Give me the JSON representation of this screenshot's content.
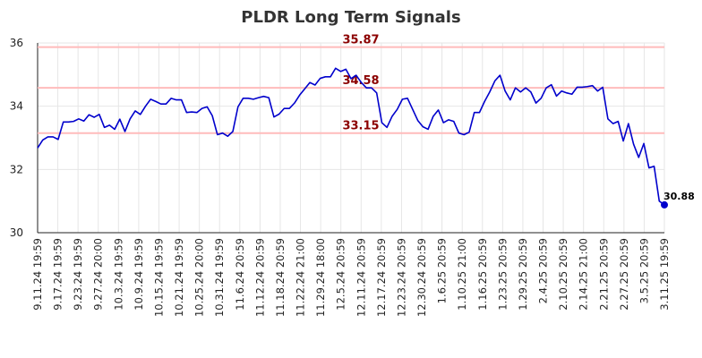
{
  "chart_data": {
    "type": "line",
    "title": "PLDR Long Term Signals",
    "xlabel": "",
    "ylabel": "",
    "ylim": [
      30,
      36
    ],
    "y_ticks": [
      30,
      32,
      34,
      36
    ],
    "x_tick_labels": [
      "9.11.24 19:59",
      "9.17.24 19:59",
      "9.23.24 19:59",
      "9.27.24 20:00",
      "10.3.24 19:59",
      "10.9.24 19:59",
      "10.15.24 19:59",
      "10.21.24 19:59",
      "10.25.24 20:00",
      "10.31.24 19:59",
      "11.6.24 20:59",
      "11.12.24 20:59",
      "11.18.24 20:59",
      "11.22.24 21:00",
      "11.29.24 18:00",
      "12.5.24 20:59",
      "12.11.24 20:59",
      "12.17.24 20:59",
      "12.23.24 20:59",
      "12.30.24 20:59",
      "1.6.25 20:59",
      "1.10.25 21:00",
      "1.16.25 20:59",
      "1.23.25 20:59",
      "1.29.25 20:59",
      "2.4.25 20:59",
      "2.10.25 20:59",
      "2.14.25 21:00",
      "2.21.25 20:59",
      "2.27.25 20:59",
      "3.5.25 20:59",
      "3.11.25 19:59"
    ],
    "values": [
      32.68,
      32.93,
      33.03,
      33.03,
      32.95,
      33.5,
      33.5,
      33.52,
      33.6,
      33.53,
      33.73,
      33.65,
      33.74,
      33.33,
      33.4,
      33.27,
      33.59,
      33.2,
      33.6,
      33.85,
      33.74,
      34.0,
      34.22,
      34.15,
      34.07,
      34.07,
      34.25,
      34.2,
      34.2,
      33.8,
      33.82,
      33.8,
      33.93,
      33.98,
      33.7,
      33.1,
      33.15,
      33.05,
      33.2,
      33.98,
      34.25,
      34.25,
      34.22,
      34.27,
      34.31,
      34.27,
      33.66,
      33.75,
      33.93,
      33.93,
      34.1,
      34.35,
      34.55,
      34.75,
      34.67,
      34.88,
      34.93,
      34.93,
      35.2,
      35.1,
      35.17,
      34.87,
      34.98,
      34.75,
      34.58,
      34.58,
      34.42,
      33.48,
      33.33,
      33.68,
      33.9,
      34.22,
      34.25,
      33.9,
      33.55,
      33.35,
      33.27,
      33.68,
      33.88,
      33.48,
      33.57,
      33.52,
      33.15,
      33.1,
      33.18,
      33.8,
      33.8,
      34.15,
      34.45,
      34.8,
      34.98,
      34.48,
      34.2,
      34.58,
      34.45,
      34.58,
      34.45,
      34.1,
      34.25,
      34.58,
      34.68,
      34.32,
      34.48,
      34.42,
      34.38,
      34.6,
      34.6,
      34.62,
      34.65,
      34.48,
      34.6,
      33.6,
      33.45,
      33.52,
      32.9,
      33.45,
      32.8,
      32.38,
      32.82,
      32.05,
      32.1,
      31.0,
      30.88
    ],
    "levels": [
      {
        "value": 35.87,
        "label": "35.87"
      },
      {
        "value": 34.58,
        "label": "34.58"
      },
      {
        "value": 33.15,
        "label": "33.15"
      }
    ],
    "last_value_label": "30.88",
    "grid": true,
    "colors": {
      "line": "#0000cc",
      "level_line": "#ffbbbb",
      "level_label": "#8b0000",
      "grid": "#e6e6e6",
      "axis": "#222222"
    }
  }
}
